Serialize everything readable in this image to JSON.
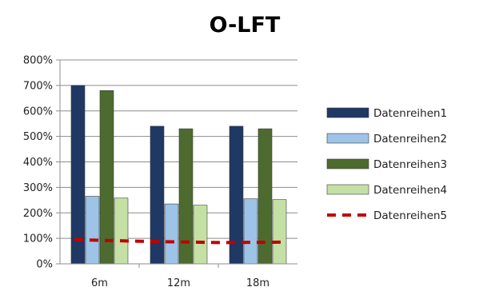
{
  "chart_data": {
    "type": "bar",
    "title": "O-LFT",
    "categories": [
      "6m",
      "12m",
      "18m"
    ],
    "y_ticks": [
      "0%",
      "100%",
      "200%",
      "300%",
      "400%",
      "500%",
      "600%",
      "700%",
      "800%"
    ],
    "ylim": [
      0,
      800
    ],
    "grid": true,
    "legend_position": "right",
    "series": [
      {
        "name": "Datenreihen1",
        "kind": "bar",
        "color": "#1f3864",
        "values": [
          700,
          540,
          540
        ]
      },
      {
        "name": "Datenreihen2",
        "kind": "bar",
        "color": "#9dc3e6",
        "values": [
          265,
          235,
          255
        ]
      },
      {
        "name": "Datenreihen3",
        "kind": "bar",
        "color": "#4e6b2f",
        "values": [
          680,
          530,
          530
        ]
      },
      {
        "name": "Datenreihen4",
        "kind": "bar",
        "color": "#c5e0a5",
        "values": [
          258,
          230,
          252
        ]
      },
      {
        "name": "Datenreihen5",
        "kind": "line",
        "color": "#c00000",
        "dashed": true,
        "values": [
          95,
          82,
          85
        ]
      }
    ]
  }
}
